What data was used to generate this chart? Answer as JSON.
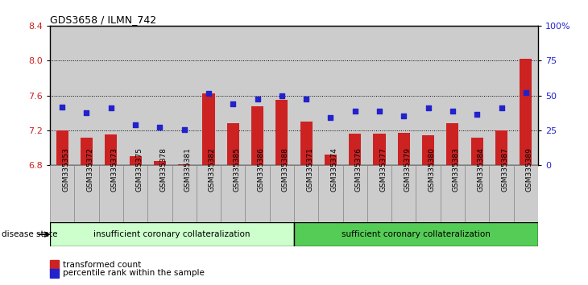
{
  "title": "GDS3658 / ILMN_742",
  "samples": [
    "GSM335353",
    "GSM335372",
    "GSM335373",
    "GSM335375",
    "GSM335378",
    "GSM335381",
    "GSM335382",
    "GSM335385",
    "GSM335386",
    "GSM335388",
    "GSM335371",
    "GSM335374",
    "GSM335376",
    "GSM335377",
    "GSM335379",
    "GSM335380",
    "GSM335383",
    "GSM335384",
    "GSM335387",
    "GSM335389"
  ],
  "bar_values": [
    7.2,
    7.12,
    7.15,
    6.9,
    6.85,
    6.81,
    7.62,
    7.28,
    7.48,
    7.55,
    7.3,
    6.92,
    7.16,
    7.16,
    7.17,
    7.14,
    7.28,
    7.12,
    7.2,
    8.02
  ],
  "percentile_values": [
    7.47,
    7.4,
    7.46,
    7.26,
    7.24,
    7.21,
    7.62,
    7.5,
    7.56,
    7.6,
    7.56,
    7.35,
    7.42,
    7.42,
    7.37,
    7.46,
    7.42,
    7.38,
    7.46,
    7.63
  ],
  "bar_color": "#cc2222",
  "dot_color": "#2222cc",
  "ylim_left": [
    6.8,
    8.4
  ],
  "ylim_right": [
    0,
    100
  ],
  "yticks_left": [
    6.8,
    7.2,
    7.6,
    8.0,
    8.4
  ],
  "yticks_right": [
    0,
    25,
    50,
    75,
    100
  ],
  "ytick_labels_right": [
    "0",
    "25",
    "50",
    "75",
    "100%"
  ],
  "group1_label": "insufficient coronary collateralization",
  "group2_label": "sufficient coronary collateralization",
  "group1_count": 10,
  "group2_count": 10,
  "disease_state_label": "disease state",
  "legend_bar_label": "transformed count",
  "legend_dot_label": "percentile rank within the sample",
  "group1_color": "#ccffcc",
  "group2_color": "#55cc55",
  "col_bg_color": "#cccccc",
  "grid_color": "#000000",
  "plot_bg": "#ffffff"
}
